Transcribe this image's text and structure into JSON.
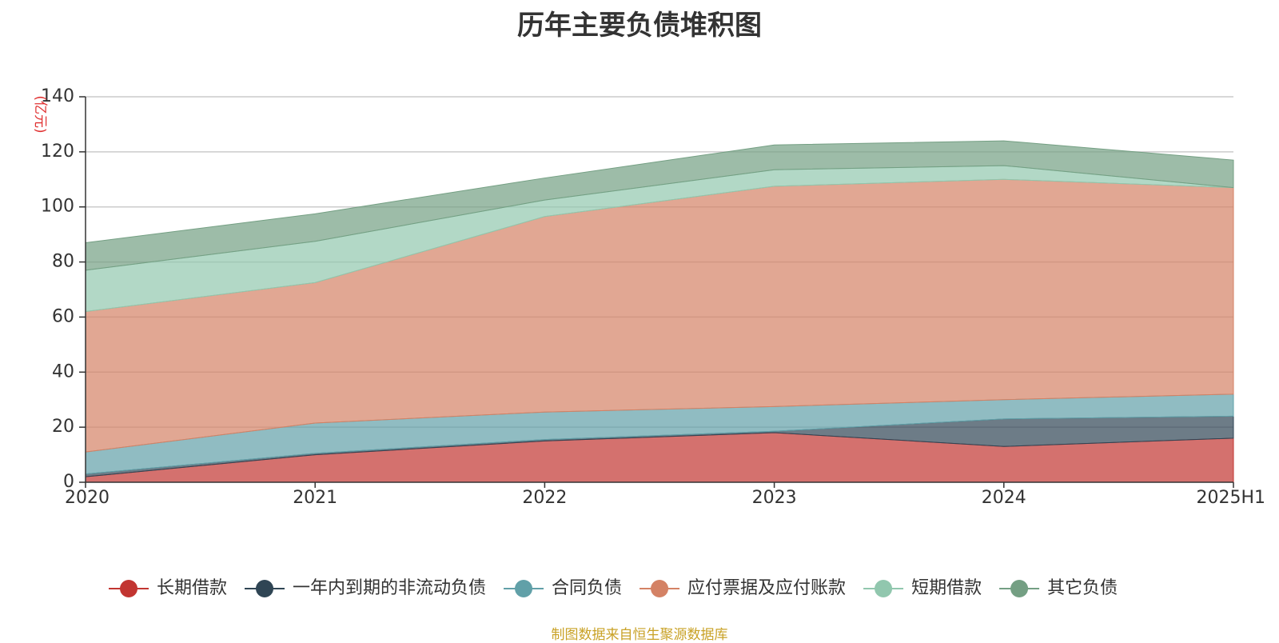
{
  "footer": "制图数据来自恒生聚源数据库",
  "chart_data": {
    "type": "area",
    "stacked": true,
    "title": "历年主要负债堆积图",
    "ylabel": "(亿元)",
    "xlabel": "",
    "categories": [
      "2020",
      "2021",
      "2022",
      "2023",
      "2024",
      "2025H1"
    ],
    "ylim": [
      0,
      140
    ],
    "yticks": [
      0,
      20,
      40,
      60,
      80,
      100,
      120,
      140
    ],
    "grid": true,
    "legend_position": "bottom",
    "series": [
      {
        "name": "长期借款",
        "color": "#c23531",
        "values": [
          2,
          10,
          15,
          18,
          13,
          16
        ]
      },
      {
        "name": "一年内到期的非流动负债",
        "color": "#2f4554",
        "values": [
          1,
          0.5,
          0.5,
          0.5,
          10,
          8
        ]
      },
      {
        "name": "合同负债",
        "color": "#61a0a8",
        "values": [
          8,
          11,
          10,
          9,
          7,
          8
        ]
      },
      {
        "name": "应付票据及应付账款",
        "color": "#d48265",
        "values": [
          51,
          51,
          71,
          80,
          80,
          75
        ]
      },
      {
        "name": "短期借款",
        "color": "#91c7ae",
        "values": [
          15,
          15,
          6,
          6,
          5,
          0
        ]
      },
      {
        "name": "其它负债",
        "color": "#749f83",
        "values": [
          10,
          10,
          8,
          9,
          9,
          10
        ]
      }
    ]
  }
}
